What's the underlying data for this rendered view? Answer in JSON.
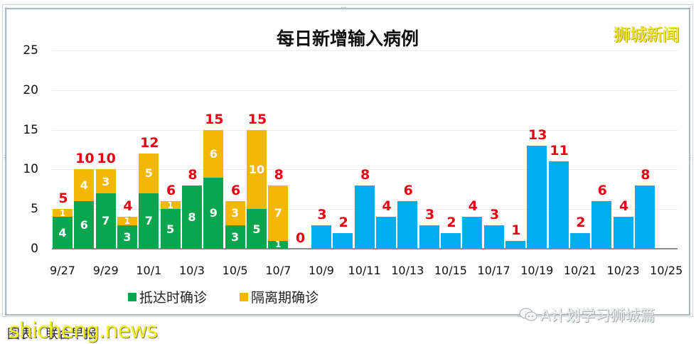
{
  "watermark_top": "狮城新闻",
  "watermark_bottom": "shicheng.news",
  "wechat_label": "A计划学习狮城篇",
  "caption": "图表：联合早报",
  "chart_data": {
    "type": "bar",
    "stacked": true,
    "title": "每日新增输入病例",
    "xlabel": "",
    "ylabel": "",
    "ylim": [
      0,
      25
    ],
    "yticks": [
      0,
      5,
      10,
      15,
      20,
      25
    ],
    "grid": true,
    "legend_position": "bottom",
    "categories": [
      "9/27",
      "9/28",
      "9/29",
      "9/30",
      "10/1",
      "10/2",
      "10/3",
      "10/4",
      "10/5",
      "10/6",
      "10/7",
      "10/8",
      "10/9",
      "10/10",
      "10/11",
      "10/12",
      "10/13",
      "10/14",
      "10/15",
      "10/16",
      "10/17",
      "10/18",
      "10/19",
      "10/20",
      "10/21",
      "10/22",
      "10/23",
      "10/24",
      "10/25"
    ],
    "xtick_labels": [
      "9/27",
      "9/29",
      "10/1",
      "10/3",
      "10/5",
      "10/7",
      "10/9",
      "10/11",
      "10/13",
      "10/15",
      "10/17",
      "10/19",
      "10/21",
      "10/23",
      "10/25"
    ],
    "series": [
      {
        "name": "抵达时确诊",
        "color": "#0aa64f",
        "values": [
          4,
          6,
          7,
          3,
          7,
          5,
          8,
          9,
          3,
          5,
          1,
          null,
          null,
          null,
          null,
          null,
          null,
          null,
          null,
          null,
          null,
          null,
          null,
          null,
          null,
          null,
          null,
          null,
          null
        ]
      },
      {
        "name": "隔离期确诊",
        "color": "#f3b706",
        "values": [
          1,
          4,
          3,
          1,
          5,
          1,
          0,
          6,
          3,
          10,
          7,
          null,
          null,
          null,
          null,
          null,
          null,
          null,
          null,
          null,
          null,
          null,
          null,
          null,
          null,
          null,
          null,
          null,
          null
        ]
      },
      {
        "name": "输入病例",
        "color": "#00aeef",
        "legend": false,
        "values": [
          null,
          null,
          null,
          null,
          null,
          null,
          null,
          null,
          null,
          null,
          null,
          0,
          3,
          2,
          8,
          4,
          6,
          3,
          2,
          4,
          3,
          1,
          13,
          11,
          2,
          6,
          4,
          8,
          null
        ]
      }
    ],
    "totals": [
      5,
      10,
      10,
      4,
      12,
      6,
      8,
      15,
      6,
      15,
      8,
      0,
      3,
      2,
      8,
      4,
      6,
      3,
      2,
      4,
      3,
      1,
      13,
      11,
      2,
      6,
      4,
      8,
      null
    ],
    "total_label_color": "#e60012"
  }
}
